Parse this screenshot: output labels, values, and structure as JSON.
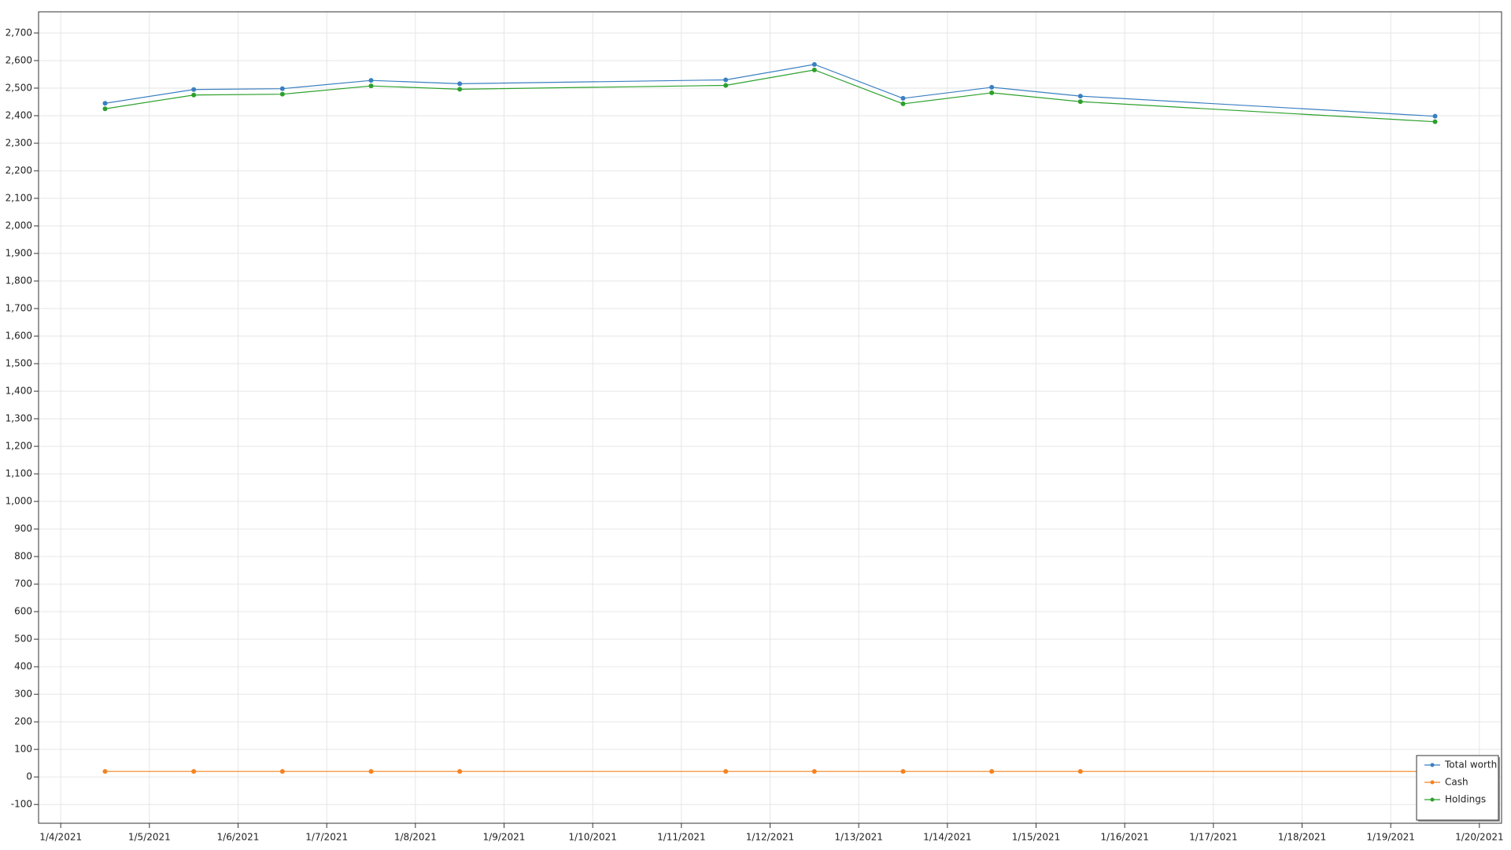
{
  "chart_data": {
    "type": "line",
    "x": [
      "1/4/2021",
      "1/5/2021",
      "1/6/2021",
      "1/7/2021",
      "1/8/2021",
      "1/11/2021",
      "1/12/2021",
      "1/13/2021",
      "1/14/2021",
      "1/15/2021",
      "1/19/2021"
    ],
    "series": [
      {
        "name": "Total worth",
        "color": "#3a7fc1",
        "values": [
          2445,
          2495,
          2498,
          2528,
          2516,
          2530,
          2586,
          2463,
          2503,
          2471,
          2398
        ]
      },
      {
        "name": "Cash",
        "color": "#f58220",
        "values": [
          20,
          20,
          20,
          20,
          20,
          20,
          20,
          20,
          20,
          20,
          20
        ]
      },
      {
        "name": "Holdings",
        "color": "#2ca02c",
        "values": [
          2425,
          2475,
          2478,
          2508,
          2496,
          2510,
          2566,
          2443,
          2483,
          2451,
          2378
        ]
      }
    ],
    "xlim": [
      "1/3/2021 18:00",
      "1/20/2021 06:00"
    ],
    "xticks": [
      "1/4/2021",
      "1/5/2021",
      "1/6/2021",
      "1/7/2021",
      "1/8/2021",
      "1/9/2021",
      "1/10/2021",
      "1/11/2021",
      "1/12/2021",
      "1/13/2021",
      "1/14/2021",
      "1/15/2021",
      "1/16/2021",
      "1/17/2021",
      "1/18/2021",
      "1/19/2021",
      "1/20/2021"
    ],
    "ylim": [
      -168,
      2777
    ],
    "yticks": [
      -100,
      0,
      100,
      200,
      300,
      400,
      500,
      600,
      700,
      800,
      900,
      {
        "value": 1000,
        "label": "1,000"
      },
      {
        "value": 1100,
        "label": "1,100"
      },
      {
        "value": 1200,
        "label": "1,200"
      },
      {
        "value": 1300,
        "label": "1,300"
      },
      {
        "value": 1400,
        "label": "1,400"
      },
      {
        "value": 1500,
        "label": "1,500"
      },
      {
        "value": 1600,
        "label": "1,600"
      },
      {
        "value": 1700,
        "label": "1,700"
      },
      {
        "value": 1800,
        "label": "1,800"
      },
      {
        "value": 1900,
        "label": "1,900"
      },
      {
        "value": 2000,
        "label": "2,000"
      },
      {
        "value": 2100,
        "label": "2,100"
      },
      {
        "value": 2200,
        "label": "2,200"
      },
      {
        "value": 2300,
        "label": "2,300"
      },
      {
        "value": 2400,
        "label": "2,400"
      },
      {
        "value": 2500,
        "label": "2,500"
      },
      {
        "value": 2600,
        "label": "2,600"
      },
      {
        "value": 2700,
        "label": "2,700"
      }
    ],
    "grid": true,
    "legend": "lower right"
  }
}
